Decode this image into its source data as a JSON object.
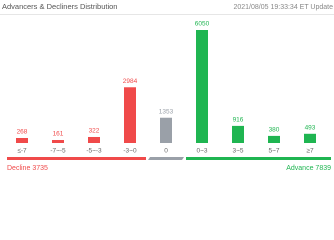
{
  "chart_data": {
    "type": "bar",
    "title": "Advancers & Decliners Distribution",
    "subtitle": "2021/08/05 19:33:34 ET Update",
    "categories": [
      "≤-7",
      "-7~-5",
      "-5~-3",
      "-3~0",
      "0",
      "0~3",
      "3~5",
      "5~7",
      "≥7"
    ],
    "values": [
      268,
      161,
      322,
      2984,
      1353,
      6050,
      916,
      380,
      493
    ],
    "colors": [
      "#f04a4a",
      "#f04a4a",
      "#f04a4a",
      "#f04a4a",
      "#9aa0a8",
      "#1fb551",
      "#1fb551",
      "#1fb551",
      "#1fb551"
    ],
    "decline": {
      "label": "Decline",
      "value": 3735
    },
    "advance": {
      "label": "Advance",
      "value": 7839
    }
  }
}
